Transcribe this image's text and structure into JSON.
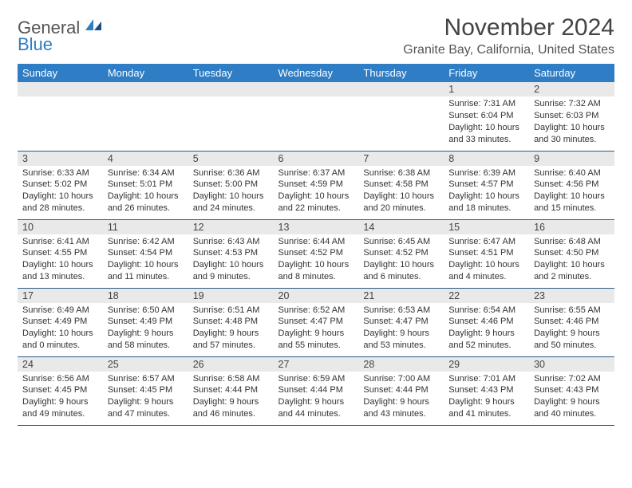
{
  "logo": {
    "word1": "General",
    "word2": "Blue"
  },
  "title": "November 2024",
  "location": "Granite Bay, California, United States",
  "dayHeaders": [
    "Sunday",
    "Monday",
    "Tuesday",
    "Wednesday",
    "Thursday",
    "Friday",
    "Saturday"
  ],
  "colors": {
    "headerBlue": "#2f7dc4",
    "rowBorder": "#2f5b8a",
    "dateBand": "#e9e9e9",
    "text": "#333333"
  },
  "weeks": [
    [
      null,
      null,
      null,
      null,
      null,
      {
        "date": "1",
        "sunrise": "Sunrise: 7:31 AM",
        "sunset": "Sunset: 6:04 PM",
        "daylight": "Daylight: 10 hours and 33 minutes."
      },
      {
        "date": "2",
        "sunrise": "Sunrise: 7:32 AM",
        "sunset": "Sunset: 6:03 PM",
        "daylight": "Daylight: 10 hours and 30 minutes."
      }
    ],
    [
      {
        "date": "3",
        "sunrise": "Sunrise: 6:33 AM",
        "sunset": "Sunset: 5:02 PM",
        "daylight": "Daylight: 10 hours and 28 minutes."
      },
      {
        "date": "4",
        "sunrise": "Sunrise: 6:34 AM",
        "sunset": "Sunset: 5:01 PM",
        "daylight": "Daylight: 10 hours and 26 minutes."
      },
      {
        "date": "5",
        "sunrise": "Sunrise: 6:36 AM",
        "sunset": "Sunset: 5:00 PM",
        "daylight": "Daylight: 10 hours and 24 minutes."
      },
      {
        "date": "6",
        "sunrise": "Sunrise: 6:37 AM",
        "sunset": "Sunset: 4:59 PM",
        "daylight": "Daylight: 10 hours and 22 minutes."
      },
      {
        "date": "7",
        "sunrise": "Sunrise: 6:38 AM",
        "sunset": "Sunset: 4:58 PM",
        "daylight": "Daylight: 10 hours and 20 minutes."
      },
      {
        "date": "8",
        "sunrise": "Sunrise: 6:39 AM",
        "sunset": "Sunset: 4:57 PM",
        "daylight": "Daylight: 10 hours and 18 minutes."
      },
      {
        "date": "9",
        "sunrise": "Sunrise: 6:40 AM",
        "sunset": "Sunset: 4:56 PM",
        "daylight": "Daylight: 10 hours and 15 minutes."
      }
    ],
    [
      {
        "date": "10",
        "sunrise": "Sunrise: 6:41 AM",
        "sunset": "Sunset: 4:55 PM",
        "daylight": "Daylight: 10 hours and 13 minutes."
      },
      {
        "date": "11",
        "sunrise": "Sunrise: 6:42 AM",
        "sunset": "Sunset: 4:54 PM",
        "daylight": "Daylight: 10 hours and 11 minutes."
      },
      {
        "date": "12",
        "sunrise": "Sunrise: 6:43 AM",
        "sunset": "Sunset: 4:53 PM",
        "daylight": "Daylight: 10 hours and 9 minutes."
      },
      {
        "date": "13",
        "sunrise": "Sunrise: 6:44 AM",
        "sunset": "Sunset: 4:52 PM",
        "daylight": "Daylight: 10 hours and 8 minutes."
      },
      {
        "date": "14",
        "sunrise": "Sunrise: 6:45 AM",
        "sunset": "Sunset: 4:52 PM",
        "daylight": "Daylight: 10 hours and 6 minutes."
      },
      {
        "date": "15",
        "sunrise": "Sunrise: 6:47 AM",
        "sunset": "Sunset: 4:51 PM",
        "daylight": "Daylight: 10 hours and 4 minutes."
      },
      {
        "date": "16",
        "sunrise": "Sunrise: 6:48 AM",
        "sunset": "Sunset: 4:50 PM",
        "daylight": "Daylight: 10 hours and 2 minutes."
      }
    ],
    [
      {
        "date": "17",
        "sunrise": "Sunrise: 6:49 AM",
        "sunset": "Sunset: 4:49 PM",
        "daylight": "Daylight: 10 hours and 0 minutes."
      },
      {
        "date": "18",
        "sunrise": "Sunrise: 6:50 AM",
        "sunset": "Sunset: 4:49 PM",
        "daylight": "Daylight: 9 hours and 58 minutes."
      },
      {
        "date": "19",
        "sunrise": "Sunrise: 6:51 AM",
        "sunset": "Sunset: 4:48 PM",
        "daylight": "Daylight: 9 hours and 57 minutes."
      },
      {
        "date": "20",
        "sunrise": "Sunrise: 6:52 AM",
        "sunset": "Sunset: 4:47 PM",
        "daylight": "Daylight: 9 hours and 55 minutes."
      },
      {
        "date": "21",
        "sunrise": "Sunrise: 6:53 AM",
        "sunset": "Sunset: 4:47 PM",
        "daylight": "Daylight: 9 hours and 53 minutes."
      },
      {
        "date": "22",
        "sunrise": "Sunrise: 6:54 AM",
        "sunset": "Sunset: 4:46 PM",
        "daylight": "Daylight: 9 hours and 52 minutes."
      },
      {
        "date": "23",
        "sunrise": "Sunrise: 6:55 AM",
        "sunset": "Sunset: 4:46 PM",
        "daylight": "Daylight: 9 hours and 50 minutes."
      }
    ],
    [
      {
        "date": "24",
        "sunrise": "Sunrise: 6:56 AM",
        "sunset": "Sunset: 4:45 PM",
        "daylight": "Daylight: 9 hours and 49 minutes."
      },
      {
        "date": "25",
        "sunrise": "Sunrise: 6:57 AM",
        "sunset": "Sunset: 4:45 PM",
        "daylight": "Daylight: 9 hours and 47 minutes."
      },
      {
        "date": "26",
        "sunrise": "Sunrise: 6:58 AM",
        "sunset": "Sunset: 4:44 PM",
        "daylight": "Daylight: 9 hours and 46 minutes."
      },
      {
        "date": "27",
        "sunrise": "Sunrise: 6:59 AM",
        "sunset": "Sunset: 4:44 PM",
        "daylight": "Daylight: 9 hours and 44 minutes."
      },
      {
        "date": "28",
        "sunrise": "Sunrise: 7:00 AM",
        "sunset": "Sunset: 4:44 PM",
        "daylight": "Daylight: 9 hours and 43 minutes."
      },
      {
        "date": "29",
        "sunrise": "Sunrise: 7:01 AM",
        "sunset": "Sunset: 4:43 PM",
        "daylight": "Daylight: 9 hours and 41 minutes."
      },
      {
        "date": "30",
        "sunrise": "Sunrise: 7:02 AM",
        "sunset": "Sunset: 4:43 PM",
        "daylight": "Daylight: 9 hours and 40 minutes."
      }
    ]
  ]
}
